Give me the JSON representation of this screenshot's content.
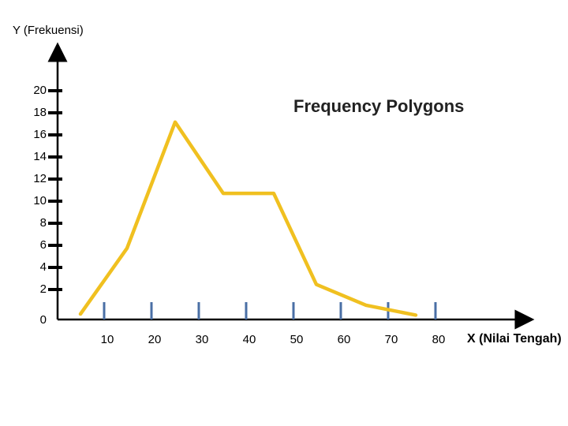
{
  "chart_data": {
    "type": "line",
    "title": "Frequency Polygons",
    "xlabel": "X (Nilai Tengah)",
    "ylabel": "Y (Frekuensi)",
    "xlim": [
      0,
      80
    ],
    "ylim": [
      0,
      20
    ],
    "x_ticks": [
      "10",
      "20",
      "30",
      "40",
      "50",
      "60",
      "70",
      "80"
    ],
    "y_ticks": [
      "0",
      "2",
      "4",
      "6",
      "8",
      "10",
      "12",
      "14",
      "16",
      "18",
      "20"
    ],
    "series": [
      {
        "x": [
          0,
          10,
          20,
          30,
          40,
          50,
          60,
          70
        ],
        "y": [
          0.5,
          6.5,
          18,
          11.5,
          11.5,
          3.2,
          1.3,
          0.4
        ]
      }
    ],
    "colors": {
      "line": "#F0C020",
      "axis": "#000000",
      "tick_mark": "#4A6FA5"
    },
    "grid": false,
    "legend": "none"
  }
}
